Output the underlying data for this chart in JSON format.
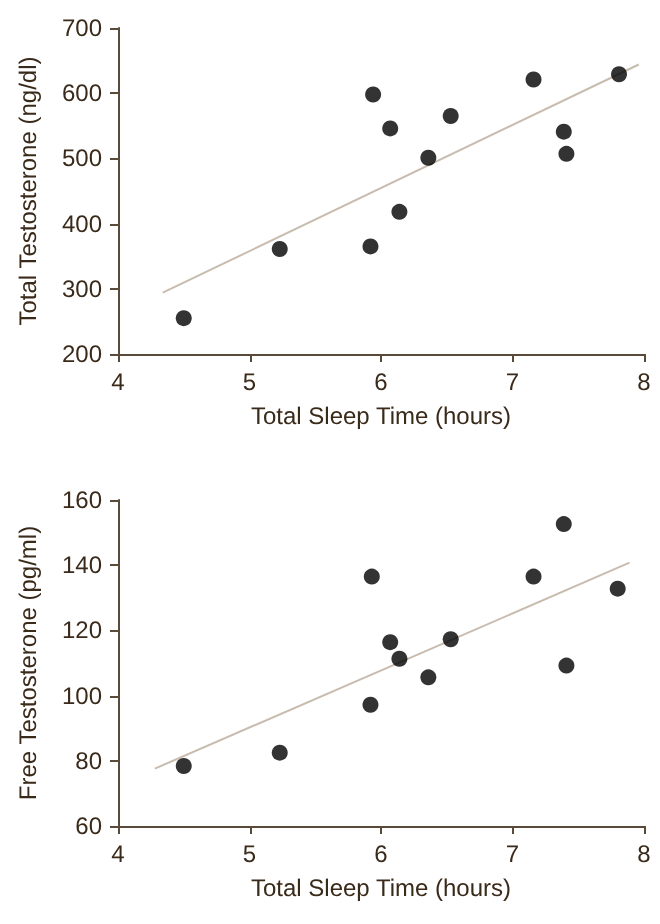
{
  "chart_data": [
    {
      "type": "scatter",
      "xlabel": "Total Sleep Time (hours)",
      "ylabel": "Total Testosterone (ng/dl)",
      "xlim": [
        4,
        8
      ],
      "xticks": [
        4,
        5,
        6,
        7,
        8
      ],
      "ylim": [
        200,
        700
      ],
      "yticks": [
        200,
        300,
        400,
        500,
        600,
        700
      ],
      "grid": false,
      "marker": "circle",
      "series": [
        {
          "color": "#000000",
          "x": [
            4.5,
            5.23,
            5.92,
            5.94,
            6.07,
            6.14,
            6.36,
            6.53,
            7.16,
            7.39,
            7.41,
            7.81
          ],
          "values": [
            255,
            361,
            365,
            598,
            546,
            418,
            501,
            565,
            621,
            541,
            507,
            629
          ]
        },
        {
          "type": "line",
          "color": "#c8bcae",
          "marker": "none",
          "x": [
            4.34,
            7.96
          ],
          "values": [
            294,
            644
          ]
        }
      ]
    },
    {
      "type": "scatter",
      "xlabel": "Total Sleep Time (hours)",
      "ylabel": "Free Testosterone (pg/ml)",
      "xlim": [
        4,
        8
      ],
      "xticks": [
        4,
        5,
        6,
        7,
        8
      ],
      "ylim": [
        60,
        160
      ],
      "yticks": [
        60,
        80,
        100,
        120,
        140,
        160
      ],
      "grid": false,
      "marker": "circle",
      "series": [
        {
          "color": "#000000",
          "x": [
            4.5,
            5.23,
            5.92,
            5.93,
            6.07,
            6.14,
            6.36,
            6.53,
            7.16,
            7.39,
            7.41,
            7.8
          ],
          "values": [
            78.4,
            82.5,
            97.2,
            136.5,
            116.4,
            111.3,
            105.6,
            117.3,
            136.5,
            152.6,
            109.2,
            132.8
          ]
        },
        {
          "type": "line",
          "color": "#c8bcae",
          "marker": "none",
          "x": [
            4.28,
            7.89
          ],
          "values": [
            77.6,
            140.8
          ]
        }
      ]
    }
  ]
}
